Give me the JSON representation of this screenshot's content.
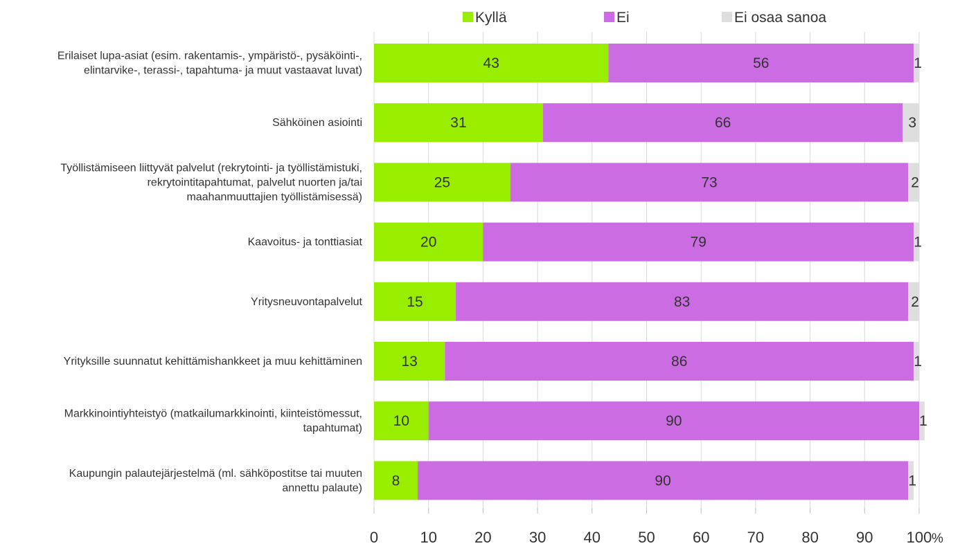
{
  "chart_data": {
    "type": "bar",
    "orientation": "horizontal",
    "stacked": true,
    "title": "",
    "xlabel": "",
    "ylabel": "",
    "x_unit": "%",
    "xlim": [
      0,
      100
    ],
    "x_ticks": [
      0,
      10,
      20,
      30,
      40,
      50,
      60,
      70,
      80,
      90,
      100
    ],
    "grid": "vertical gridlines",
    "legend_position": "top",
    "categories": [
      [
        "Erilaiset lupa-asiat (esim. rakentamis-, ympäristö-, pysäköinti-,",
        "elintarvike-, terassi-, tapahtuma- ja muut vastaavat luvat)"
      ],
      [
        "Sähköinen asiointi"
      ],
      [
        "Työllistämiseen liittyvät palvelut (rekrytointi- ja työllistämistuki,",
        "rekrytointitapahtumat, palvelut nuorten ja/tai",
        "maahanmuuttajien työllistämisessä)"
      ],
      [
        "Kaavoitus- ja tonttiasiat"
      ],
      [
        "Yritysneuvontapalvelut"
      ],
      [
        "Yrityksille suunnatut kehittämishankkeet ja muu kehittäminen"
      ],
      [
        "Markkinointiyhteistyö (matkailumarkkinointi, kiinteistömessut,",
        "tapahtumat)"
      ],
      [
        "Kaupungin palautejärjestelmä (ml. sähköpostitse tai muuten",
        "annettu palaute)"
      ]
    ],
    "series": [
      {
        "name": "Kyllä",
        "color": "#99ee00",
        "values": [
          43,
          31,
          25,
          20,
          15,
          13,
          10,
          8
        ]
      },
      {
        "name": "Ei",
        "color": "#cc6ce2",
        "values": [
          56,
          66,
          73,
          79,
          83,
          86,
          90,
          90
        ]
      },
      {
        "name": "Ei osaa sanoa",
        "color": "#dedede",
        "values": [
          1,
          3,
          2,
          1,
          2,
          1,
          1,
          1
        ]
      }
    ]
  }
}
